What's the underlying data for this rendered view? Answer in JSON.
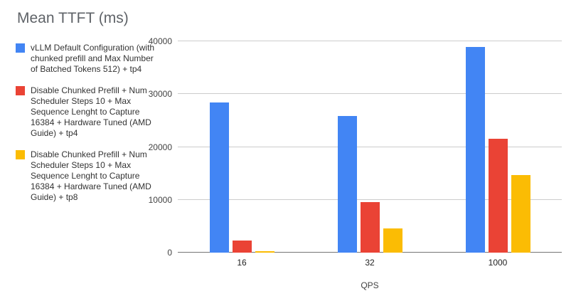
{
  "chart_data": {
    "type": "bar",
    "title": "Mean TTFT (ms)",
    "xlabel": "QPS",
    "ylabel": "",
    "categories": [
      "16",
      "32",
      "1000"
    ],
    "series": [
      {
        "name": "vLLM Default Configuration (with chunked prefill and Max Number of Batched Tokens 512) + tp4",
        "color": "#4285F4",
        "values": [
          28400,
          25900,
          38900
        ]
      },
      {
        "name": "Disable Chunked Prefill + Num Scheduler Steps 10 + Max Sequence Lenght to Capture 16384 + Hardware Tuned (AMD Guide) + tp4",
        "color": "#EA4335",
        "values": [
          2300,
          9500,
          21500
        ]
      },
      {
        "name": "Disable Chunked Prefill + Num Scheduler Steps 10 + Max Sequence Lenght to Capture 16384 + Hardware Tuned (AMD Guide) + tp8",
        "color": "#FBBC04",
        "values": [
          250,
          4600,
          14700
        ]
      }
    ],
    "ylim": [
      0,
      40000
    ],
    "yticks": [
      0,
      10000,
      20000,
      30000,
      40000
    ],
    "grid": true,
    "legend_position": "left"
  }
}
